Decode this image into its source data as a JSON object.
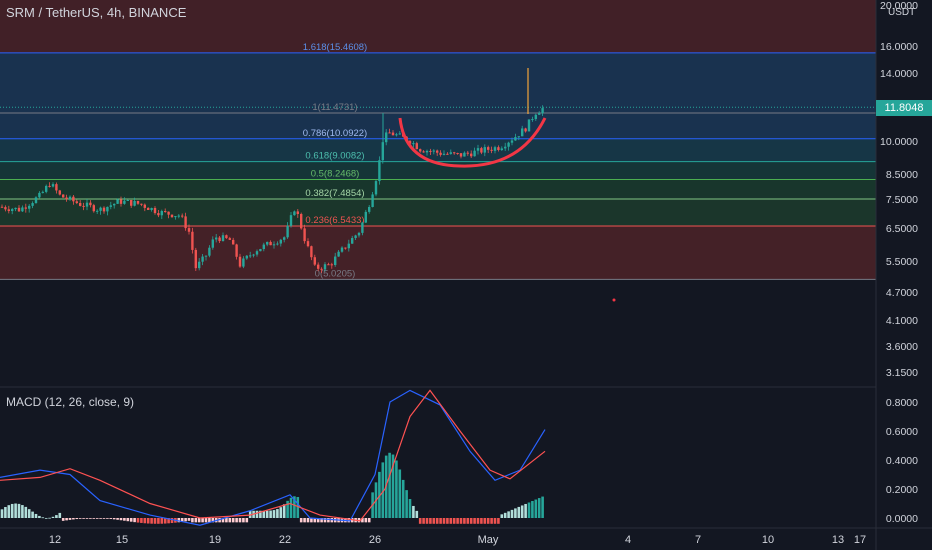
{
  "header": {
    "symbol_line": "SRM / TetherUS, 4h, BINANCE",
    "currency": "USDT",
    "last_price": "11.8048"
  },
  "macd": {
    "label": "MACD (12, 26, close, 9)"
  },
  "colors": {
    "background": "#131722",
    "up": "#26a69a",
    "down": "#ef5350",
    "macd_line": "#2962ff",
    "signal_line": "#ff5252",
    "cup_curve": "#f23645"
  },
  "chart_data": [
    {
      "type": "candlestick",
      "title": "SRM / TetherUS, 4h, BINANCE",
      "y_scale": "log",
      "y_ticks": [
        "20.0000",
        "16.0000",
        "14.0000",
        "11.8048",
        "10.0000",
        "8.5000",
        "7.5000",
        "6.5000",
        "5.5000",
        "4.7000",
        "4.1000",
        "3.6000",
        "3.1500"
      ],
      "x_ticks": [
        "12",
        "15",
        "19",
        "22",
        "26",
        "May",
        "4",
        "7",
        "10",
        "13",
        "17"
      ],
      "fib_levels": [
        {
          "ratio": "1.618",
          "price": 15.4608,
          "label": "1.618(15.4608)"
        },
        {
          "ratio": "1",
          "price": 11.4731,
          "label": "1(11.4731)"
        },
        {
          "ratio": "0.786",
          "price": 10.0922,
          "label": "0.786(10.0922)"
        },
        {
          "ratio": "0.618",
          "price": 9.0082,
          "label": "0.618(9.0082)"
        },
        {
          "ratio": "0.5",
          "price": 8.2468,
          "label": "0.5(8.2468)"
        },
        {
          "ratio": "0.382",
          "price": 7.4854,
          "label": "0.382(7.4854)"
        },
        {
          "ratio": "0.236",
          "price": 6.5433,
          "label": "0.236(6.5433)"
        },
        {
          "ratio": "0",
          "price": 5.0205,
          "label": "0(5.0205)"
        }
      ],
      "price_path": [
        [
          0,
          7.2
        ],
        [
          20,
          7.1
        ],
        [
          40,
          7.6
        ],
        [
          50,
          8.1
        ],
        [
          60,
          7.6
        ],
        [
          80,
          7.3
        ],
        [
          100,
          7.1
        ],
        [
          120,
          7.4
        ],
        [
          140,
          7.3
        ],
        [
          160,
          7.0
        ],
        [
          180,
          6.9
        ],
        [
          190,
          6.3
        ],
        [
          195,
          5.3
        ],
        [
          205,
          5.6
        ],
        [
          215,
          6.2
        ],
        [
          230,
          6.1
        ],
        [
          240,
          5.4
        ],
        [
          255,
          5.8
        ],
        [
          270,
          6.0
        ],
        [
          285,
          6.2
        ],
        [
          295,
          7.2
        ],
        [
          305,
          6.1
        ],
        [
          315,
          5.3
        ],
        [
          330,
          5.4
        ],
        [
          345,
          5.9
        ],
        [
          360,
          6.4
        ],
        [
          370,
          7.4
        ],
        [
          378,
          8.6
        ],
        [
          383,
          10.1
        ],
        [
          390,
          10.4
        ],
        [
          400,
          10.2
        ],
        [
          410,
          10.0
        ],
        [
          420,
          9.6
        ],
        [
          440,
          9.4
        ],
        [
          460,
          9.3
        ],
        [
          480,
          9.5
        ],
        [
          500,
          9.7
        ],
        [
          515,
          10.2
        ],
        [
          525,
          10.6
        ],
        [
          530,
          11.0
        ],
        [
          535,
          11.5
        ],
        [
          545,
          11.8
        ]
      ],
      "macd_ticks": [
        "0.8000",
        "0.6000",
        "0.4000",
        "0.2000",
        "0.0000"
      ]
    }
  ]
}
